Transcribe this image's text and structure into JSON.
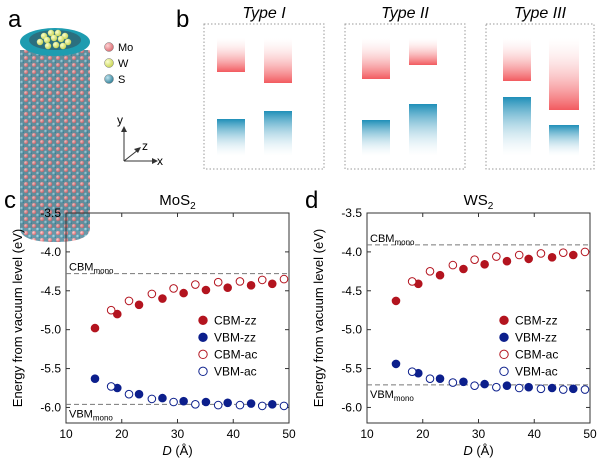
{
  "panel_labels": {
    "a": "a",
    "b": "b",
    "c": "c",
    "d": "d"
  },
  "panel_a": {
    "legend": [
      {
        "label": "Mo",
        "color": "#e8858a"
      },
      {
        "label": "W",
        "color": "#dfe87a"
      },
      {
        "label": "S",
        "color": "#4f9ab0"
      }
    ],
    "axes": {
      "y": "y",
      "z": "z",
      "x": "x"
    }
  },
  "panel_b": {
    "types": [
      "Type I",
      "Type II",
      "Type III"
    ],
    "cbm_color": "#f25a5f",
    "vbm_color": "#1f8fb8"
  },
  "chart_data": [
    {
      "type": "scatter",
      "title": "MoS2",
      "title_main": "MoS",
      "title_sub": "2",
      "xlabel": "D (Å)",
      "xlabel_var": "D",
      "xlabel_unit": "(Å)",
      "ylabel": "Energy from vacuum level (eV)",
      "xlim": [
        10,
        50
      ],
      "ylim": [
        -6.2,
        -3.5
      ],
      "xticks": [
        "10",
        "20",
        "30",
        "40",
        "50"
      ],
      "yticks": [
        "-3.5",
        "-4.0",
        "-4.5",
        "-5.0",
        "-5.5",
        "-6.0"
      ],
      "reference_lines": [
        {
          "label_main": "CBM",
          "label_sub": "mono",
          "y": -4.28
        },
        {
          "label_main": "VBM",
          "label_sub": "mono",
          "y": -5.96
        }
      ],
      "legend_position": "center-right",
      "series": [
        {
          "name": "CBM-zz",
          "color": "#b3141f",
          "filled": true,
          "x": [
            15.2,
            19.2,
            23.1,
            27.3,
            31.1,
            35.1,
            39.0,
            43.2,
            47.0
          ],
          "y": [
            -4.98,
            -4.8,
            -4.68,
            -4.6,
            -4.53,
            -4.49,
            -4.46,
            -4.43,
            -4.41
          ]
        },
        {
          "name": "VBM-zz",
          "color": "#0c1f8c",
          "filled": true,
          "x": [
            15.2,
            19.2,
            23.1,
            27.3,
            31.1,
            35.1,
            39.0,
            43.2,
            47.0
          ],
          "y": [
            -5.63,
            -5.75,
            -5.83,
            -5.88,
            -5.92,
            -5.93,
            -5.94,
            -5.95,
            -5.96
          ]
        },
        {
          "name": "CBM-ac",
          "color": "#b3141f",
          "filled": false,
          "x": [
            18.1,
            21.3,
            25.4,
            29.3,
            33.2,
            37.3,
            41.2,
            45.2,
            49.1
          ],
          "y": [
            -4.75,
            -4.63,
            -4.54,
            -4.47,
            -4.42,
            -4.39,
            -4.38,
            -4.36,
            -4.35
          ]
        },
        {
          "name": "VBM-ac",
          "color": "#0c1f8c",
          "filled": false,
          "x": [
            18.1,
            21.3,
            25.4,
            29.3,
            33.2,
            37.3,
            41.2,
            45.2,
            49.1
          ],
          "y": [
            -5.73,
            -5.83,
            -5.89,
            -5.93,
            -5.96,
            -5.97,
            -5.97,
            -5.98,
            -5.98
          ]
        }
      ]
    },
    {
      "type": "scatter",
      "title": "WS2",
      "title_main": "WS",
      "title_sub": "2",
      "xlabel": "D (Å)",
      "xlabel_var": "D",
      "xlabel_unit": "(Å)",
      "ylabel": "Energy from vacuum level (eV)",
      "xlim": [
        10,
        50
      ],
      "ylim": [
        -6.2,
        -3.5
      ],
      "xticks": [
        "10",
        "20",
        "30",
        "40",
        "50"
      ],
      "yticks": [
        "-3.5",
        "-4.0",
        "-4.5",
        "-5.0",
        "-5.5",
        "-6.0"
      ],
      "reference_lines": [
        {
          "label_main": "CBM",
          "label_sub": "mono",
          "y": -3.91
        },
        {
          "label_main": "VBM",
          "label_sub": "mono",
          "y": -5.71
        }
      ],
      "legend_position": "center-right",
      "series": [
        {
          "name": "CBM-zz",
          "color": "#b3141f",
          "filled": true,
          "x": [
            15.2,
            19.2,
            23.1,
            27.3,
            31.1,
            35.1,
            39.0,
            43.2,
            47.0
          ],
          "y": [
            -4.63,
            -4.41,
            -4.3,
            -4.22,
            -4.16,
            -4.12,
            -4.09,
            -4.07,
            -4.04
          ]
        },
        {
          "name": "VBM-zz",
          "color": "#0c1f8c",
          "filled": true,
          "x": [
            15.2,
            19.2,
            23.1,
            27.3,
            31.1,
            35.1,
            39.0,
            43.2,
            47.0
          ],
          "y": [
            -5.44,
            -5.56,
            -5.63,
            -5.67,
            -5.7,
            -5.72,
            -5.74,
            -5.75,
            -5.76
          ]
        },
        {
          "name": "CBM-ac",
          "color": "#b3141f",
          "filled": false,
          "x": [
            18.1,
            21.3,
            25.4,
            29.3,
            33.2,
            37.3,
            41.2,
            45.2,
            49.1
          ],
          "y": [
            -4.38,
            -4.25,
            -4.17,
            -4.1,
            -4.06,
            -4.04,
            -4.02,
            -4.01,
            -4.0
          ]
        },
        {
          "name": "VBM-ac",
          "color": "#0c1f8c",
          "filled": false,
          "x": [
            18.1,
            21.3,
            25.4,
            29.3,
            33.2,
            37.3,
            41.2,
            45.2,
            49.1
          ],
          "y": [
            -5.54,
            -5.63,
            -5.68,
            -5.72,
            -5.74,
            -5.75,
            -5.76,
            -5.77,
            -5.77
          ]
        }
      ]
    }
  ]
}
